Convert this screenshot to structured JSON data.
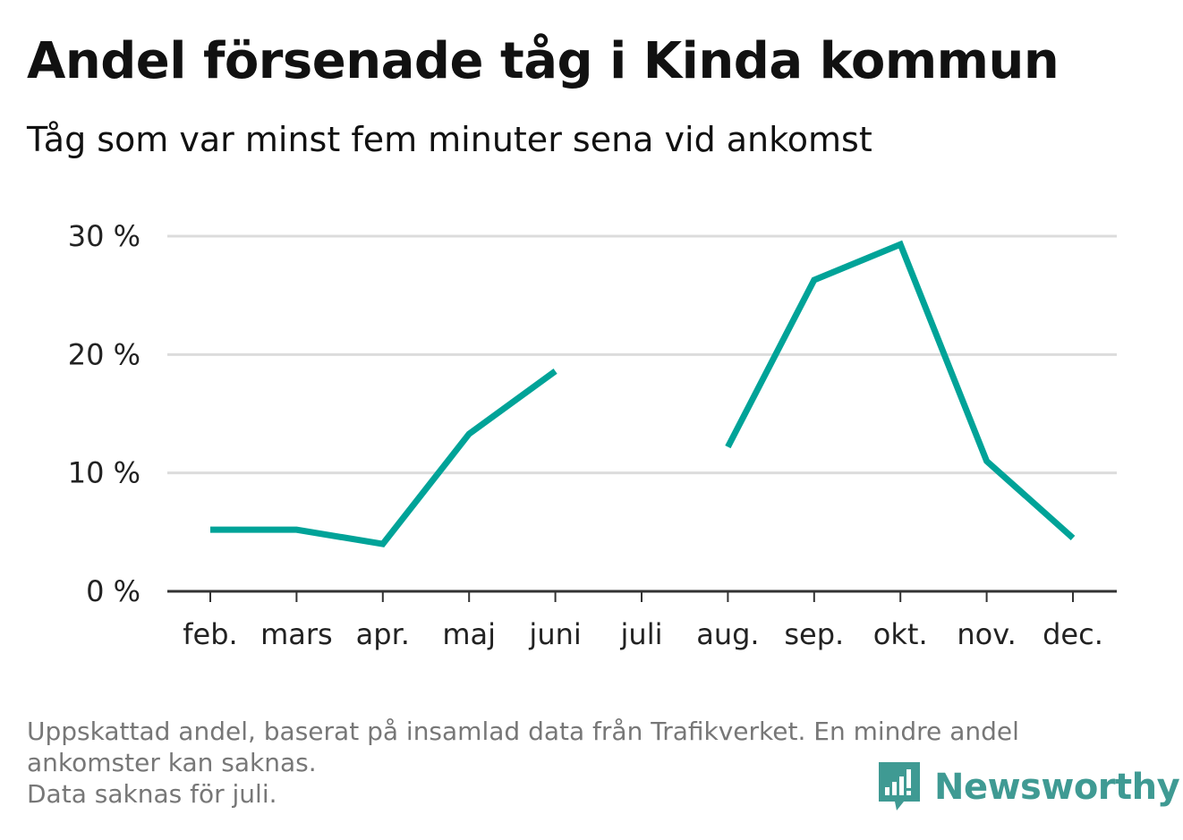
{
  "title": "Andel försenade tåg i Kinda kommun",
  "subtitle": "Tåg som var minst fem minuter sena vid ankomst",
  "footer": {
    "line1": "Uppskattad andel, baserat på insamlad data från Trafikverket. En mindre andel",
    "line2": "ankomster kan saknas.",
    "line3": "Data saknas för juli."
  },
  "brand": {
    "name": "Newsworthy",
    "icon": "newsworthy-logo-icon",
    "color": "#3f9a93"
  },
  "chart_data": {
    "type": "line",
    "title": "Andel försenade tåg i Kinda kommun",
    "subtitle": "Tåg som var minst fem minuter sena vid ankomst",
    "categories": [
      "feb.",
      "mars",
      "apr.",
      "maj",
      "juni",
      "juli",
      "aug.",
      "sep.",
      "okt.",
      "nov.",
      "dec."
    ],
    "series": [
      {
        "values": [
          5.2,
          5.2,
          4.0,
          13.3,
          18.6,
          null,
          12.2,
          26.3,
          29.3,
          11.0,
          4.5
        ],
        "color": "#00a398"
      }
    ],
    "ylim": [
      0,
      30
    ],
    "yticks": [
      0,
      10,
      20,
      30
    ],
    "ytick_labels": [
      "0 %",
      "10 %",
      "20 %",
      "30 %"
    ],
    "grid": true,
    "xlabel": "",
    "ylabel": ""
  }
}
